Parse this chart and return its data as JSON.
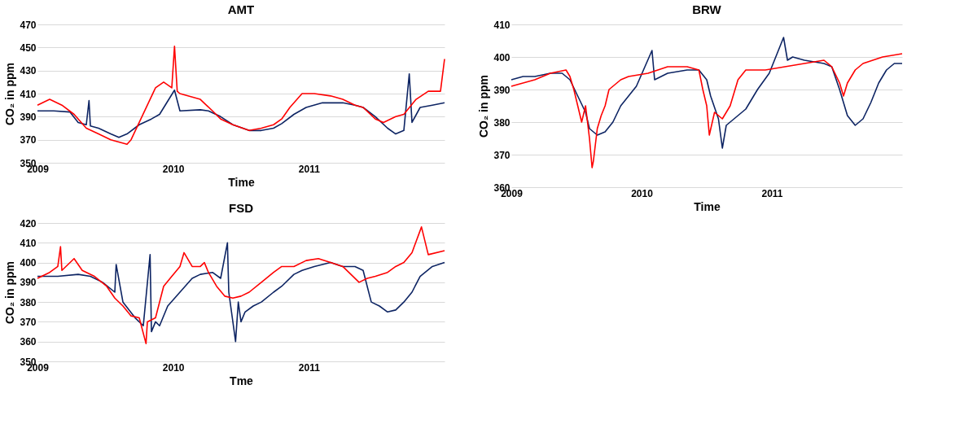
{
  "chart_data": [
    {
      "type": "line",
      "title": "AMT",
      "xlabel": "Time",
      "ylabel": "CO₂ in ppm",
      "xlim": [
        2009,
        2012
      ],
      "xticks": [
        2009,
        2010,
        2011
      ],
      "ylim": [
        350,
        470
      ],
      "yticks": [
        350,
        370,
        390,
        410,
        430,
        450,
        470
      ],
      "grid": "y",
      "series": [
        {
          "color": "#0d2463",
          "x": [
            2009,
            2009.12,
            2009.24,
            2009.3,
            2009.36,
            2009.38,
            2009.39,
            2009.45,
            2009.54,
            2009.6,
            2009.66,
            2009.75,
            2009.84,
            2009.9,
            2010.01,
            2010.05,
            2010.2,
            2010.26,
            2010.35,
            2010.44,
            2010.56,
            2010.65,
            2010.74,
            2010.8,
            2010.89,
            2010.98,
            2011.1,
            2011.25,
            2011.34,
            2011.4,
            2011.49,
            2011.58,
            2011.64,
            2011.7,
            2011.74,
            2011.76,
            2011.82,
            2011.91,
            2012
          ],
          "values": [
            395,
            395,
            394,
            385,
            383,
            404,
            382,
            380,
            375,
            372,
            375,
            383,
            388,
            392,
            413,
            395,
            396,
            395,
            390,
            383,
            378,
            378,
            380,
            384,
            392,
            398,
            402,
            402,
            400,
            398,
            390,
            380,
            375,
            378,
            427,
            385,
            398,
            400,
            402
          ]
        },
        {
          "color": "#ff0000",
          "x": [
            2009,
            2009.09,
            2009.18,
            2009.27,
            2009.36,
            2009.45,
            2009.54,
            2009.6,
            2009.66,
            2009.69,
            2009.75,
            2009.81,
            2009.87,
            2009.93,
            2009.99,
            2010.01,
            2010.03,
            2010.05,
            2010.2,
            2010.29,
            2010.35,
            2010.44,
            2010.56,
            2010.65,
            2010.74,
            2010.8,
            2010.86,
            2010.95,
            2011.04,
            2011.16,
            2011.25,
            2011.34,
            2011.4,
            2011.49,
            2011.55,
            2011.64,
            2011.7,
            2011.79,
            2011.88,
            2011.97,
            2012
          ],
          "values": [
            400,
            405,
            400,
            392,
            380,
            375,
            370,
            368,
            366,
            370,
            385,
            400,
            415,
            420,
            415,
            451,
            412,
            410,
            405,
            395,
            388,
            383,
            378,
            380,
            383,
            388,
            398,
            410,
            410,
            408,
            405,
            400,
            398,
            388,
            385,
            390,
            392,
            405,
            412,
            412,
            440
          ]
        }
      ]
    },
    {
      "type": "line",
      "title": "FSD",
      "xlabel": "Tme",
      "ylabel": "CO₂ in ppm",
      "xlim": [
        2009,
        2012
      ],
      "xticks": [
        2009,
        2010,
        2011
      ],
      "ylim": [
        350,
        420
      ],
      "yticks": [
        350,
        360,
        370,
        380,
        390,
        400,
        410,
        420
      ],
      "grid": "y",
      "series": [
        {
          "color": "#0d2463",
          "x": [
            2009,
            2009.15,
            2009.3,
            2009.39,
            2009.48,
            2009.57,
            2009.58,
            2009.63,
            2009.72,
            2009.78,
            2009.83,
            2009.84,
            2009.87,
            2009.9,
            2009.96,
            2010.05,
            2010.14,
            2010.2,
            2010.29,
            2010.35,
            2010.4,
            2010.41,
            2010.46,
            2010.48,
            2010.5,
            2010.53,
            2010.59,
            2010.65,
            2010.74,
            2010.8,
            2010.89,
            2010.95,
            2011.04,
            2011.16,
            2011.25,
            2011.34,
            2011.4,
            2011.43,
            2011.46,
            2011.52,
            2011.58,
            2011.64,
            2011.7,
            2011.76,
            2011.82,
            2011.91,
            2012
          ],
          "values": [
            393,
            393,
            394,
            393,
            390,
            385,
            399,
            380,
            372,
            368,
            404,
            365,
            370,
            368,
            378,
            385,
            392,
            394,
            395,
            392,
            410,
            385,
            360,
            380,
            370,
            375,
            378,
            380,
            385,
            388,
            394,
            396,
            398,
            400,
            398,
            398,
            396,
            388,
            380,
            378,
            375,
            376,
            380,
            385,
            393,
            398,
            400
          ]
        },
        {
          "color": "#ff0000",
          "x": [
            2009,
            2009.09,
            2009.15,
            2009.17,
            2009.18,
            2009.27,
            2009.33,
            2009.42,
            2009.51,
            2009.57,
            2009.63,
            2009.69,
            2009.75,
            2009.8,
            2009.81,
            2009.87,
            2009.93,
            2009.99,
            2010.05,
            2010.08,
            2010.14,
            2010.2,
            2010.23,
            2010.26,
            2010.32,
            2010.38,
            2010.44,
            2010.5,
            2010.56,
            2010.65,
            2010.74,
            2010.8,
            2010.89,
            2010.98,
            2011.07,
            2011.16,
            2011.25,
            2011.31,
            2011.37,
            2011.43,
            2011.49,
            2011.58,
            2011.64,
            2011.7,
            2011.76,
            2011.83,
            2011.88,
            2012
          ],
          "values": [
            392,
            395,
            398,
            408,
            396,
            402,
            396,
            393,
            388,
            382,
            378,
            373,
            372,
            359,
            370,
            372,
            388,
            393,
            398,
            405,
            398,
            398,
            400,
            395,
            388,
            383,
            382,
            383,
            385,
            390,
            395,
            398,
            398,
            401,
            402,
            400,
            398,
            394,
            390,
            392,
            393,
            395,
            398,
            400,
            405,
            418,
            404,
            406
          ]
        }
      ]
    },
    {
      "type": "line",
      "title": "BRW",
      "xlabel": "Time",
      "ylabel": "CO₂ in ppm",
      "xlim": [
        2009,
        2012
      ],
      "xticks": [
        2009,
        2010,
        2011
      ],
      "ylim": [
        360,
        410
      ],
      "yticks": [
        360,
        370,
        380,
        390,
        400,
        410
      ],
      "grid": "y",
      "series": [
        {
          "color": "#0d2463",
          "x": [
            2009,
            2009.09,
            2009.18,
            2009.3,
            2009.39,
            2009.45,
            2009.51,
            2009.57,
            2009.6,
            2009.66,
            2009.72,
            2009.78,
            2009.84,
            2009.9,
            2009.96,
            2010.08,
            2010.1,
            2010.2,
            2010.35,
            2010.44,
            2010.5,
            2010.53,
            2010.59,
            2010.62,
            2010.65,
            2010.71,
            2010.8,
            2010.89,
            2010.98,
            2011.09,
            2011.12,
            2011.16,
            2011.25,
            2011.4,
            2011.46,
            2011.52,
            2011.58,
            2011.64,
            2011.7,
            2011.76,
            2011.82,
            2011.88,
            2011.94,
            2012
          ],
          "values": [
            393,
            394,
            394,
            395,
            395,
            393,
            388,
            383,
            378,
            376,
            377,
            380,
            385,
            388,
            391,
            402,
            393,
            395,
            396,
            396,
            393,
            388,
            381,
            372,
            379,
            381,
            384,
            390,
            395,
            406,
            399,
            400,
            399,
            398,
            397,
            390,
            382,
            379,
            381,
            386,
            392,
            396,
            398,
            398
          ]
        },
        {
          "color": "#ff0000",
          "x": [
            2009,
            2009.09,
            2009.18,
            2009.3,
            2009.42,
            2009.45,
            2009.48,
            2009.51,
            2009.54,
            2009.57,
            2009.6,
            2009.62,
            2009.63,
            2009.66,
            2009.69,
            2009.72,
            2009.75,
            2009.84,
            2009.9,
            2010.05,
            2010.2,
            2010.35,
            2010.44,
            2010.47,
            2010.5,
            2010.52,
            2010.56,
            2010.62,
            2010.68,
            2010.74,
            2010.8,
            2010.95,
            2011.1,
            2011.25,
            2011.4,
            2011.46,
            2011.52,
            2011.55,
            2011.58,
            2011.64,
            2011.7,
            2011.85,
            2012
          ],
          "values": [
            391,
            392,
            393,
            395,
            396,
            394,
            390,
            385,
            380,
            385,
            375,
            366,
            368,
            378,
            382,
            385,
            390,
            393,
            394,
            395,
            397,
            397,
            396,
            390,
            385,
            376,
            383,
            381,
            385,
            393,
            396,
            396,
            397,
            398,
            399,
            397,
            392,
            388,
            392,
            396,
            398,
            400,
            401
          ]
        }
      ]
    }
  ]
}
